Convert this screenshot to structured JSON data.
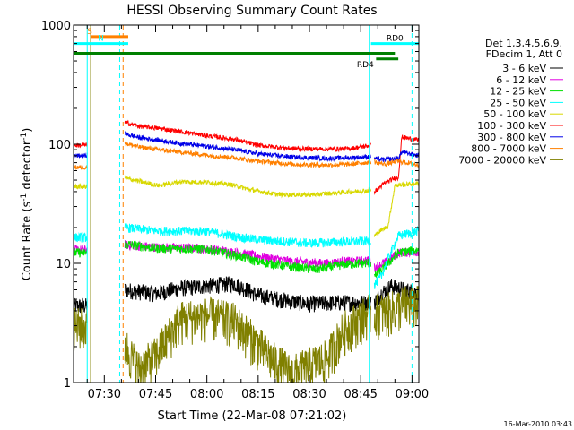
{
  "chart_data": {
    "type": "line",
    "title": "HESSI Observing Summary Count Rates",
    "xlabel": "Start Time (22-Mar-08 07:21:02)",
    "ylabel_main": "Count Rate (s",
    "ylabel_sup1": "-1",
    "ylabel_mid": " detector",
    "ylabel_sup2": "-1",
    "ylabel_end": ")",
    "y_scale": "log",
    "ylim": [
      1,
      1000
    ],
    "xlim_min": [
      441,
      542
    ],
    "x_tick_minutes": [
      450,
      465,
      480,
      495,
      510,
      525,
      540
    ],
    "x_tick_labels": [
      "07:30",
      "07:45",
      "08:00",
      "08:15",
      "08:30",
      "08:45",
      "09:00"
    ],
    "y_tick_values": [
      1,
      10,
      100,
      1000
    ],
    "y_tick_labels": [
      "1",
      "10",
      "100",
      "1000"
    ],
    "timestamp": "16-Mar-2010 03:43",
    "legend": {
      "placement": "right",
      "header": [
        "Det 1,3,4,5,6,9,",
        "FDecim 1, Att 0"
      ],
      "entries": [
        {
          "label": "3 - 6 keV",
          "color": "#000000"
        },
        {
          "label": "6 - 12 keV",
          "color": "#e000e0"
        },
        {
          "label": "12 - 25 keV",
          "color": "#00e000"
        },
        {
          "label": "25 - 50 keV",
          "color": "#00ffff"
        },
        {
          "label": "50 - 100 keV",
          "color": "#d8d800"
        },
        {
          "label": "100 - 300 keV",
          "color": "#ff0000"
        },
        {
          "label": "300 - 800 keV",
          "color": "#0000e8"
        },
        {
          "label": "800 - 7000 keV",
          "color": "#ff8000"
        },
        {
          "label": "7000 - 20000 keV",
          "color": "#808000"
        }
      ]
    },
    "flag_bars": [
      {
        "label": "S",
        "start_min": 446,
        "end_min": 457,
        "level": 800,
        "color": "#ff8000"
      },
      {
        "label": "N",
        "start_min": 441,
        "end_min": 457,
        "level": 700,
        "color": "#00ffff"
      },
      {
        "label": "",
        "start_min": 441,
        "end_min": 535,
        "level": 580,
        "color": "#008000"
      },
      {
        "label": "RD0",
        "start_min": 528,
        "end_min": 542,
        "level": 700,
        "color": "#00ffff"
      },
      {
        "label": "RD4",
        "start_min": 529.5,
        "end_min": 536,
        "level": 520,
        "color": "#008000"
      }
    ],
    "event_lines": [
      {
        "minute": 445,
        "color": "#00ffff",
        "style": "solid"
      },
      {
        "minute": 446,
        "color": "#808000",
        "style": "solid"
      },
      {
        "minute": 454.5,
        "color": "#00ffff",
        "style": "dashed"
      },
      {
        "minute": 455.5,
        "color": "#ff8000",
        "style": "dashed"
      },
      {
        "minute": 527.5,
        "color": "#00ffff",
        "style": "solid"
      },
      {
        "minute": 540,
        "color": "#00ffff",
        "style": "dashed"
      }
    ],
    "segments": [
      {
        "start_min": 441,
        "end_min": 445
      },
      {
        "start_min": 456,
        "end_min": 528
      },
      {
        "start_min": 529,
        "end_min": 542
      }
    ],
    "series": [
      {
        "name": "3 - 6 keV",
        "color": "#000000",
        "values": [
          [
            441,
            4.4
          ],
          [
            444.5,
            4.4
          ],
          [
            456,
            6
          ],
          [
            465,
            5.6
          ],
          [
            472,
            6.2
          ],
          [
            480,
            6.5
          ],
          [
            488,
            6.8
          ],
          [
            495,
            5.4
          ],
          [
            503,
            4.9
          ],
          [
            510,
            4.6
          ],
          [
            518,
            4.7
          ],
          [
            528,
            4.7
          ],
          [
            529,
            4.7
          ],
          [
            531,
            5.6
          ],
          [
            534,
            6.5
          ],
          [
            538,
            6
          ],
          [
            542,
            5.7
          ]
        ]
      },
      {
        "name": "6 - 12 keV",
        "color": "#e000e0",
        "values": [
          [
            441,
            13
          ],
          [
            444.5,
            13
          ],
          [
            456,
            14.3
          ],
          [
            465,
            13.7
          ],
          [
            480,
            13.3
          ],
          [
            490,
            12.2
          ],
          [
            495,
            11.5
          ],
          [
            505,
            10.4
          ],
          [
            515,
            10
          ],
          [
            520,
            10.4
          ],
          [
            528,
            10.6
          ],
          [
            529,
            9.2
          ],
          [
            533,
            10.5
          ],
          [
            536,
            12.3
          ],
          [
            542,
            12.6
          ]
        ]
      },
      {
        "name": "12 - 25 keV",
        "color": "#00e000",
        "values": [
          [
            441,
            12.3
          ],
          [
            444.5,
            12.3
          ],
          [
            456,
            14.6
          ],
          [
            465,
            13.4
          ],
          [
            480,
            13.2
          ],
          [
            490,
            11.4
          ],
          [
            495,
            10.3
          ],
          [
            505,
            9.4
          ],
          [
            512,
            8.9
          ],
          [
            520,
            9.8
          ],
          [
            528,
            10.1
          ],
          [
            529,
            7.7
          ],
          [
            532,
            9.3
          ],
          [
            536,
            12.3
          ],
          [
            542,
            13
          ]
        ]
      },
      {
        "name": "25 - 50 keV",
        "color": "#00ffff",
        "values": [
          [
            441,
            16.5
          ],
          [
            444.5,
            16.5
          ],
          [
            456,
            20
          ],
          [
            465,
            18.8
          ],
          [
            480,
            18.6
          ],
          [
            490,
            16.5
          ],
          [
            497,
            15.6
          ],
          [
            510,
            14.8
          ],
          [
            520,
            15.2
          ],
          [
            528,
            15.4
          ],
          [
            529,
            6.6
          ],
          [
            531,
            7.8
          ],
          [
            533,
            11
          ],
          [
            536,
            17
          ],
          [
            542,
            18.7
          ]
        ]
      },
      {
        "name": "50 - 100 keV",
        "color": "#d8d800",
        "values": [
          [
            441,
            44
          ],
          [
            444.5,
            44
          ],
          [
            456,
            52
          ],
          [
            460,
            49
          ],
          [
            466,
            45
          ],
          [
            472,
            48.5
          ],
          [
            480,
            48
          ],
          [
            487,
            46
          ],
          [
            492,
            42
          ],
          [
            500,
            38
          ],
          [
            510,
            37.5
          ],
          [
            520,
            39.5
          ],
          [
            528,
            41
          ],
          [
            529,
            17
          ],
          [
            531,
            19
          ],
          [
            533,
            20.5
          ],
          [
            535,
            45
          ],
          [
            542,
            47
          ]
        ]
      },
      {
        "name": "100 - 300 keV",
        "color": "#ff0000",
        "values": [
          [
            441,
            98
          ],
          [
            444.5,
            98
          ],
          [
            456,
            152
          ],
          [
            460,
            142
          ],
          [
            466,
            136
          ],
          [
            472,
            128
          ],
          [
            480,
            118
          ],
          [
            488,
            110
          ],
          [
            495,
            98
          ],
          [
            505,
            92
          ],
          [
            515,
            91
          ],
          [
            522,
            92
          ],
          [
            528,
            98
          ],
          [
            529,
            40
          ],
          [
            532,
            47
          ],
          [
            535,
            52
          ],
          [
            536,
            52
          ],
          [
            537,
            115
          ],
          [
            542,
            108
          ]
        ]
      },
      {
        "name": "300 - 800 keV",
        "color": "#0000e8",
        "values": [
          [
            441,
            80
          ],
          [
            444.5,
            80
          ],
          [
            456,
            122
          ],
          [
            460,
            114
          ],
          [
            466,
            108
          ],
          [
            472,
            102
          ],
          [
            480,
            96
          ],
          [
            488,
            90
          ],
          [
            495,
            83
          ],
          [
            505,
            78
          ],
          [
            515,
            76
          ],
          [
            522,
            77
          ],
          [
            528,
            79
          ],
          [
            529,
            76
          ],
          [
            532,
            74
          ],
          [
            536,
            76
          ],
          [
            537,
            86
          ],
          [
            542,
            80
          ]
        ]
      },
      {
        "name": "800 - 7000 keV",
        "color": "#ff8000",
        "values": [
          [
            441,
            64
          ],
          [
            444.5,
            64
          ],
          [
            456,
            102
          ],
          [
            460,
            95
          ],
          [
            466,
            90
          ],
          [
            472,
            86
          ],
          [
            480,
            81
          ],
          [
            488,
            77
          ],
          [
            495,
            72
          ],
          [
            505,
            68
          ],
          [
            515,
            67
          ],
          [
            522,
            68
          ],
          [
            528,
            71
          ],
          [
            529,
            71
          ],
          [
            532,
            68
          ],
          [
            536,
            72
          ],
          [
            542,
            67
          ]
        ]
      },
      {
        "name": "7000 - 20000 keV",
        "color": "#808000",
        "values": [
          [
            441,
            3
          ],
          [
            444.5,
            3
          ],
          [
            456,
            2.1
          ],
          [
            460,
            1.3
          ],
          [
            465,
            1.7
          ],
          [
            472,
            3.4
          ],
          [
            480,
            3.7
          ],
          [
            488,
            3.3
          ],
          [
            495,
            2.1
          ],
          [
            500,
            1.5
          ],
          [
            505,
            1.2
          ],
          [
            510,
            1.4
          ],
          [
            515,
            1.6
          ],
          [
            520,
            2.8
          ],
          [
            528,
            4
          ],
          [
            529,
            3.9
          ],
          [
            533,
            4
          ],
          [
            538,
            4.6
          ],
          [
            542,
            4.6
          ]
        ]
      }
    ]
  }
}
